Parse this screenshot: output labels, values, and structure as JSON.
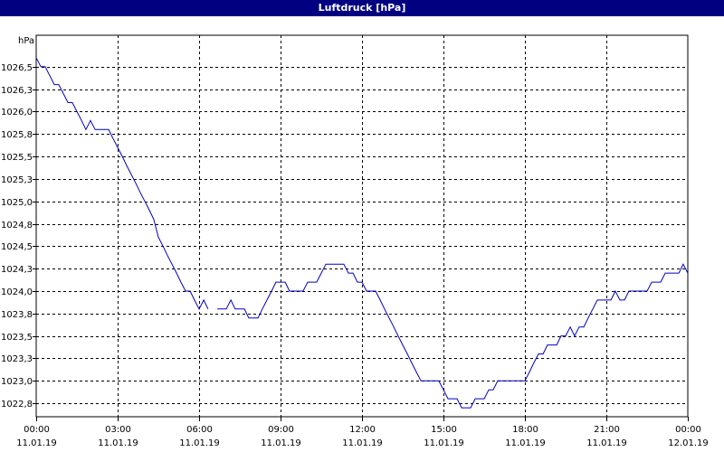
{
  "title": "Luftdruck [hPa]",
  "colors": {
    "titlebar": "#000080",
    "line": "#0000c0",
    "grid": "#000000"
  },
  "chart_data": {
    "type": "line",
    "title": "Luftdruck [hPa]",
    "ylabel": "hPa",
    "xlabel": "",
    "grid": true,
    "ylim": [
      1022.6,
      1026.85
    ],
    "xlim": [
      0,
      24
    ],
    "yticks": [
      {
        "value": 1026.5,
        "label": "1026,5"
      },
      {
        "value": 1026.25,
        "label": "1026,3"
      },
      {
        "value": 1026.0,
        "label": "1026,0"
      },
      {
        "value": 1025.75,
        "label": "1025,8"
      },
      {
        "value": 1025.5,
        "label": "1025,5"
      },
      {
        "value": 1025.25,
        "label": "1025,3"
      },
      {
        "value": 1025.0,
        "label": "1025,0"
      },
      {
        "value": 1024.75,
        "label": "1024,8"
      },
      {
        "value": 1024.5,
        "label": "1024,5"
      },
      {
        "value": 1024.25,
        "label": "1024,3"
      },
      {
        "value": 1024.0,
        "label": "1024,0"
      },
      {
        "value": 1023.75,
        "label": "1023,8"
      },
      {
        "value": 1023.5,
        "label": "1023,5"
      },
      {
        "value": 1023.25,
        "label": "1023,3"
      },
      {
        "value": 1023.0,
        "label": "1023,0"
      },
      {
        "value": 1022.75,
        "label": "1022,8"
      }
    ],
    "xticks": [
      {
        "value": 0,
        "time": "00:00",
        "date": "11.01.19"
      },
      {
        "value": 3,
        "time": "03:00",
        "date": "11.01.19"
      },
      {
        "value": 6,
        "time": "06:00",
        "date": "11.01.19"
      },
      {
        "value": 9,
        "time": "09:00",
        "date": "11.01.19"
      },
      {
        "value": 12,
        "time": "12:00",
        "date": "11.01.19"
      },
      {
        "value": 15,
        "time": "15:00",
        "date": "11.01.19"
      },
      {
        "value": 18,
        "time": "18:00",
        "date": "11.01.19"
      },
      {
        "value": 21,
        "time": "21:00",
        "date": "11.01.19"
      },
      {
        "value": 24,
        "time": "00:00",
        "date": "12.01.19"
      }
    ],
    "series": [
      {
        "segments": [
          [
            [
              0.0,
              1026.6
            ],
            [
              0.17,
              1026.5
            ],
            [
              0.33,
              1026.5
            ],
            [
              0.5,
              1026.4
            ],
            [
              0.67,
              1026.3
            ],
            [
              0.83,
              1026.3
            ],
            [
              1.0,
              1026.2
            ],
            [
              1.17,
              1026.1
            ],
            [
              1.33,
              1026.1
            ],
            [
              1.5,
              1026.0
            ],
            [
              1.67,
              1025.9
            ],
            [
              1.83,
              1025.8
            ],
            [
              2.0,
              1025.9
            ],
            [
              2.17,
              1025.8
            ],
            [
              2.33,
              1025.8
            ],
            [
              2.5,
              1025.8
            ],
            [
              2.67,
              1025.8
            ],
            [
              2.83,
              1025.7
            ],
            [
              3.0,
              1025.6
            ],
            [
              3.17,
              1025.5
            ],
            [
              3.33,
              1025.4
            ],
            [
              3.5,
              1025.3
            ],
            [
              3.67,
              1025.2
            ],
            [
              3.83,
              1025.1
            ],
            [
              4.0,
              1025.0
            ],
            [
              4.17,
              1024.9
            ],
            [
              4.33,
              1024.8
            ],
            [
              4.5,
              1024.6
            ],
            [
              4.67,
              1024.5
            ],
            [
              4.83,
              1024.4
            ],
            [
              5.0,
              1024.3
            ],
            [
              5.17,
              1024.2
            ],
            [
              5.33,
              1024.1
            ],
            [
              5.5,
              1024.0
            ],
            [
              5.67,
              1024.0
            ],
            [
              5.83,
              1023.9
            ],
            [
              6.0,
              1023.8
            ],
            [
              6.17,
              1023.9
            ],
            [
              6.33,
              1023.8
            ]
          ],
          [
            [
              6.67,
              1023.8
            ],
            [
              7.0,
              1023.8
            ],
            [
              7.17,
              1023.9
            ],
            [
              7.33,
              1023.8
            ],
            [
              7.5,
              1023.8
            ],
            [
              7.67,
              1023.8
            ],
            [
              7.83,
              1023.7
            ],
            [
              8.0,
              1023.7
            ],
            [
              8.17,
              1023.7
            ],
            [
              8.33,
              1023.8
            ],
            [
              8.5,
              1023.9
            ],
            [
              8.67,
              1024.0
            ],
            [
              8.83,
              1024.1
            ],
            [
              9.0,
              1024.1
            ],
            [
              9.17,
              1024.1
            ],
            [
              9.33,
              1024.0
            ],
            [
              9.5,
              1024.0
            ],
            [
              9.67,
              1024.0
            ],
            [
              9.83,
              1024.0
            ],
            [
              10.0,
              1024.1
            ],
            [
              10.17,
              1024.1
            ],
            [
              10.33,
              1024.1
            ],
            [
              10.5,
              1024.2
            ],
            [
              10.67,
              1024.3
            ],
            [
              10.83,
              1024.3
            ],
            [
              11.0,
              1024.3
            ],
            [
              11.17,
              1024.3
            ],
            [
              11.33,
              1024.3
            ],
            [
              11.5,
              1024.2
            ],
            [
              11.67,
              1024.2
            ],
            [
              11.83,
              1024.1
            ],
            [
              12.0,
              1024.1
            ],
            [
              12.17,
              1024.0
            ],
            [
              12.33,
              1024.0
            ],
            [
              12.5,
              1024.0
            ],
            [
              12.67,
              1023.9
            ],
            [
              12.83,
              1023.8
            ],
            [
              13.0,
              1023.7
            ],
            [
              13.17,
              1023.6
            ],
            [
              13.33,
              1023.5
            ],
            [
              13.5,
              1023.4
            ],
            [
              13.67,
              1023.3
            ],
            [
              13.83,
              1023.2
            ],
            [
              14.0,
              1023.1
            ],
            [
              14.17,
              1023.0
            ],
            [
              14.33,
              1023.0
            ],
            [
              14.5,
              1023.0
            ],
            [
              14.67,
              1023.0
            ],
            [
              14.83,
              1023.0
            ],
            [
              15.0,
              1022.9
            ],
            [
              15.17,
              1022.8
            ],
            [
              15.33,
              1022.8
            ],
            [
              15.5,
              1022.8
            ],
            [
              15.67,
              1022.7
            ],
            [
              15.83,
              1022.7
            ],
            [
              16.0,
              1022.7
            ],
            [
              16.17,
              1022.8
            ],
            [
              16.33,
              1022.8
            ],
            [
              16.5,
              1022.8
            ],
            [
              16.67,
              1022.9
            ],
            [
              16.83,
              1022.9
            ],
            [
              17.0,
              1023.0
            ],
            [
              17.17,
              1023.0
            ],
            [
              17.33,
              1023.0
            ],
            [
              17.5,
              1023.0
            ],
            [
              17.67,
              1023.0
            ],
            [
              17.83,
              1023.0
            ],
            [
              18.0,
              1023.0
            ],
            [
              18.17,
              1023.1
            ],
            [
              18.33,
              1023.2
            ],
            [
              18.5,
              1023.3
            ],
            [
              18.67,
              1023.3
            ],
            [
              18.83,
              1023.4
            ],
            [
              19.0,
              1023.4
            ],
            [
              19.17,
              1023.4
            ],
            [
              19.33,
              1023.5
            ],
            [
              19.5,
              1023.5
            ],
            [
              19.67,
              1023.6
            ],
            [
              19.83,
              1023.5
            ],
            [
              20.0,
              1023.6
            ],
            [
              20.17,
              1023.6
            ],
            [
              20.33,
              1023.7
            ],
            [
              20.5,
              1023.8
            ],
            [
              20.67,
              1023.9
            ],
            [
              20.83,
              1023.9
            ],
            [
              21.0,
              1023.9
            ],
            [
              21.17,
              1023.9
            ],
            [
              21.33,
              1024.0
            ],
            [
              21.5,
              1023.9
            ],
            [
              21.67,
              1023.9
            ],
            [
              21.83,
              1024.0
            ],
            [
              22.0,
              1024.0
            ],
            [
              22.17,
              1024.0
            ],
            [
              22.33,
              1024.0
            ],
            [
              22.5,
              1024.0
            ],
            [
              22.67,
              1024.1
            ],
            [
              22.83,
              1024.1
            ],
            [
              23.0,
              1024.1
            ],
            [
              23.17,
              1024.2
            ],
            [
              23.33,
              1024.2
            ],
            [
              23.5,
              1024.2
            ],
            [
              23.67,
              1024.2
            ],
            [
              23.83,
              1024.3
            ],
            [
              24.0,
              1024.2
            ]
          ]
        ]
      }
    ]
  }
}
